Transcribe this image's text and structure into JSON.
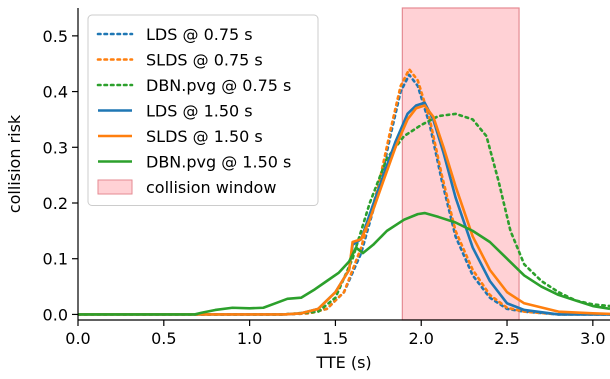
{
  "chart_data": {
    "type": "line",
    "title": "",
    "xlabel": "TTE (s)",
    "ylabel": "collision risk",
    "xlim": [
      0.0,
      3.1
    ],
    "ylim": [
      -0.01,
      0.55
    ],
    "xticks": [
      0.0,
      0.5,
      1.0,
      1.5,
      2.0,
      2.5,
      3.0
    ],
    "xtick_labels": [
      "0.0",
      "0.5",
      "1.0",
      "1.5",
      "2.0",
      "2.5",
      "3.0"
    ],
    "yticks": [
      0.0,
      0.1,
      0.2,
      0.3,
      0.4,
      0.5
    ],
    "ytick_labels": [
      "0.0",
      "0.1",
      "0.2",
      "0.3",
      "0.4",
      "0.5"
    ],
    "grid": false,
    "legend_position": "top-left",
    "collision_window": {
      "name": "collision window",
      "x_start": 1.89,
      "x_end": 2.57,
      "color": "#ff9aa2"
    },
    "series": [
      {
        "name": "LDS @ 0.75 s",
        "style": "dotted",
        "color": "#1f77b4",
        "points": [
          [
            0.0,
            0.0
          ],
          [
            0.5,
            0.0
          ],
          [
            1.0,
            0.0
          ],
          [
            1.2,
            0.0
          ],
          [
            1.35,
            0.002
          ],
          [
            1.45,
            0.01
          ],
          [
            1.55,
            0.04
          ],
          [
            1.65,
            0.11
          ],
          [
            1.75,
            0.22
          ],
          [
            1.82,
            0.32
          ],
          [
            1.88,
            0.4
          ],
          [
            1.93,
            0.43
          ],
          [
            1.98,
            0.41
          ],
          [
            2.05,
            0.34
          ],
          [
            2.12,
            0.24
          ],
          [
            2.2,
            0.14
          ],
          [
            2.3,
            0.07
          ],
          [
            2.4,
            0.03
          ],
          [
            2.5,
            0.01
          ],
          [
            2.6,
            0.005
          ],
          [
            2.8,
            0.0
          ],
          [
            3.1,
            0.0
          ]
        ]
      },
      {
        "name": "SLDS @ 0.75 s",
        "style": "dotted",
        "color": "#ff7f0e",
        "points": [
          [
            0.0,
            0.0
          ],
          [
            0.5,
            0.0
          ],
          [
            1.0,
            0.0
          ],
          [
            1.2,
            0.0
          ],
          [
            1.35,
            0.002
          ],
          [
            1.45,
            0.01
          ],
          [
            1.55,
            0.04
          ],
          [
            1.65,
            0.12
          ],
          [
            1.75,
            0.23
          ],
          [
            1.82,
            0.33
          ],
          [
            1.88,
            0.41
          ],
          [
            1.93,
            0.44
          ],
          [
            1.98,
            0.42
          ],
          [
            2.05,
            0.35
          ],
          [
            2.12,
            0.25
          ],
          [
            2.2,
            0.15
          ],
          [
            2.3,
            0.08
          ],
          [
            2.4,
            0.035
          ],
          [
            2.5,
            0.012
          ],
          [
            2.6,
            0.005
          ],
          [
            2.8,
            0.0
          ],
          [
            3.1,
            0.0
          ]
        ]
      },
      {
        "name": "DBN.pvg @ 0.75 s",
        "style": "dotted",
        "color": "#2ca02c",
        "points": [
          [
            0.0,
            0.0
          ],
          [
            0.5,
            0.0
          ],
          [
            1.0,
            0.0
          ],
          [
            1.2,
            0.0
          ],
          [
            1.4,
            0.005
          ],
          [
            1.5,
            0.03
          ],
          [
            1.6,
            0.1
          ],
          [
            1.7,
            0.2
          ],
          [
            1.8,
            0.28
          ],
          [
            1.9,
            0.32
          ],
          [
            2.0,
            0.34
          ],
          [
            2.1,
            0.356
          ],
          [
            2.2,
            0.36
          ],
          [
            2.3,
            0.35
          ],
          [
            2.38,
            0.32
          ],
          [
            2.45,
            0.24
          ],
          [
            2.52,
            0.15
          ],
          [
            2.6,
            0.09
          ],
          [
            2.7,
            0.06
          ],
          [
            2.8,
            0.04
          ],
          [
            2.9,
            0.025
          ],
          [
            3.0,
            0.018
          ],
          [
            3.1,
            0.015
          ]
        ]
      },
      {
        "name": "LDS @ 1.50 s",
        "style": "solid",
        "color": "#1f77b4",
        "points": [
          [
            0.0,
            0.0
          ],
          [
            0.5,
            0.0
          ],
          [
            1.0,
            0.0
          ],
          [
            1.2,
            0.0
          ],
          [
            1.3,
            0.002
          ],
          [
            1.4,
            0.01
          ],
          [
            1.5,
            0.04
          ],
          [
            1.58,
            0.08
          ],
          [
            1.6,
            0.125
          ],
          [
            1.65,
            0.135
          ],
          [
            1.7,
            0.18
          ],
          [
            1.78,
            0.25
          ],
          [
            1.85,
            0.31
          ],
          [
            1.92,
            0.36
          ],
          [
            1.97,
            0.375
          ],
          [
            2.02,
            0.38
          ],
          [
            2.07,
            0.35
          ],
          [
            2.13,
            0.29
          ],
          [
            2.2,
            0.21
          ],
          [
            2.3,
            0.12
          ],
          [
            2.4,
            0.06
          ],
          [
            2.5,
            0.02
          ],
          [
            2.6,
            0.008
          ],
          [
            2.8,
            0.0
          ],
          [
            3.1,
            0.0
          ]
        ]
      },
      {
        "name": "SLDS @ 1.50 s",
        "style": "solid",
        "color": "#ff7f0e",
        "points": [
          [
            0.0,
            0.0
          ],
          [
            0.5,
            0.0
          ],
          [
            1.0,
            0.0
          ],
          [
            1.2,
            0.0
          ],
          [
            1.3,
            0.002
          ],
          [
            1.4,
            0.01
          ],
          [
            1.5,
            0.04
          ],
          [
            1.58,
            0.08
          ],
          [
            1.6,
            0.13
          ],
          [
            1.65,
            0.135
          ],
          [
            1.7,
            0.17
          ],
          [
            1.78,
            0.24
          ],
          [
            1.85,
            0.3
          ],
          [
            1.92,
            0.35
          ],
          [
            1.97,
            0.37
          ],
          [
            2.02,
            0.375
          ],
          [
            2.07,
            0.355
          ],
          [
            2.13,
            0.3
          ],
          [
            2.2,
            0.23
          ],
          [
            2.3,
            0.14
          ],
          [
            2.4,
            0.08
          ],
          [
            2.5,
            0.04
          ],
          [
            2.6,
            0.02
          ],
          [
            2.8,
            0.005
          ],
          [
            3.0,
            0.002
          ],
          [
            3.1,
            0.001
          ]
        ]
      },
      {
        "name": "DBN.pvg @ 1.50 s",
        "style": "solid",
        "color": "#2ca02c",
        "points": [
          [
            0.0,
            0.0
          ],
          [
            0.5,
            0.0
          ],
          [
            0.68,
            0.0
          ],
          [
            0.72,
            0.003
          ],
          [
            0.8,
            0.008
          ],
          [
            0.9,
            0.012
          ],
          [
            1.0,
            0.011
          ],
          [
            1.08,
            0.012
          ],
          [
            1.15,
            0.02
          ],
          [
            1.22,
            0.028
          ],
          [
            1.3,
            0.03
          ],
          [
            1.38,
            0.045
          ],
          [
            1.45,
            0.06
          ],
          [
            1.52,
            0.075
          ],
          [
            1.58,
            0.095
          ],
          [
            1.62,
            0.12
          ],
          [
            1.66,
            0.11
          ],
          [
            1.72,
            0.125
          ],
          [
            1.8,
            0.15
          ],
          [
            1.9,
            0.17
          ],
          [
            1.98,
            0.18
          ],
          [
            2.02,
            0.182
          ],
          [
            2.1,
            0.175
          ],
          [
            2.2,
            0.165
          ],
          [
            2.3,
            0.15
          ],
          [
            2.4,
            0.13
          ],
          [
            2.5,
            0.1
          ],
          [
            2.6,
            0.07
          ],
          [
            2.7,
            0.05
          ],
          [
            2.8,
            0.035
          ],
          [
            2.9,
            0.025
          ],
          [
            3.0,
            0.015
          ],
          [
            3.1,
            0.01
          ]
        ]
      }
    ]
  }
}
